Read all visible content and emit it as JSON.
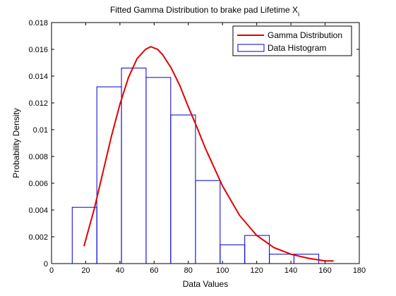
{
  "chart_data": {
    "type": "bar",
    "title": "Fitted Gamma Distribution to brake pad Lifetime X",
    "title_subscript": "i",
    "xlabel": "Data Values",
    "ylabel": "Probability Density",
    "xlim": [
      0,
      180
    ],
    "ylim": [
      0,
      0.018
    ],
    "xticks": [
      "0",
      "20",
      "40",
      "60",
      "80",
      "100",
      "120",
      "140",
      "160",
      "180"
    ],
    "yticks": [
      "0",
      "0.002",
      "0.004",
      "0.006",
      "0.008",
      "0.01",
      "0.012",
      "0.014",
      "0.016",
      "0.018"
    ],
    "grid": false,
    "legend_position": "top-right",
    "series": [
      {
        "name": "Gamma Distribution",
        "type": "line",
        "color": "#e00000",
        "x": [
          19,
          25,
          30,
          35,
          40,
          45,
          50,
          55,
          58,
          62,
          65,
          70,
          75,
          80,
          85,
          90,
          95,
          100,
          110,
          120,
          130,
          140,
          150,
          160,
          165
        ],
        "y": [
          0.0013,
          0.0041,
          0.0068,
          0.0095,
          0.0119,
          0.0139,
          0.0153,
          0.016,
          0.0162,
          0.016,
          0.0156,
          0.0146,
          0.0133,
          0.0117,
          0.0102,
          0.0086,
          0.0072,
          0.0058,
          0.0036,
          0.0021,
          0.0012,
          0.0007,
          0.0004,
          0.0002,
          0.0002
        ]
      },
      {
        "name": "Data Histogram",
        "type": "histogram",
        "color": "#0000cc",
        "bins": [
          {
            "from": 12.1,
            "to": 26.5,
            "value": 0.0042
          },
          {
            "from": 26.5,
            "to": 40.9,
            "value": 0.0132
          },
          {
            "from": 40.9,
            "to": 55.3,
            "value": 0.0146
          },
          {
            "from": 55.3,
            "to": 69.7,
            "value": 0.0139
          },
          {
            "from": 69.7,
            "to": 84.2,
            "value": 0.0111
          },
          {
            "from": 84.2,
            "to": 98.6,
            "value": 0.0062
          },
          {
            "from": 98.6,
            "to": 113.0,
            "value": 0.0014
          },
          {
            "from": 113.0,
            "to": 127.4,
            "value": 0.0021
          },
          {
            "from": 127.4,
            "to": 141.8,
            "value": 0.0007
          },
          {
            "from": 141.8,
            "to": 156.3,
            "value": 0.0007
          }
        ]
      }
    ]
  }
}
